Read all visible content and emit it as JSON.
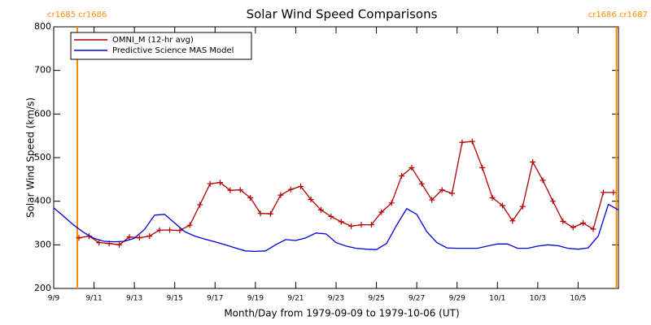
{
  "chart_data": {
    "type": "line",
    "title": "Solar Wind Speed Comparisons",
    "x_label": "Month/Day from 1979-09-09 to 1979-10-06 (UT)",
    "y_label": "Solar Wind Speed (km/s)",
    "xlim": [
      0,
      28
    ],
    "ylim": [
      200,
      800
    ],
    "yticks": [
      200,
      300,
      400,
      500,
      600,
      700,
      800
    ],
    "xticks": [
      {
        "value": 0,
        "label": "9/9"
      },
      {
        "value": 2,
        "label": "9/11"
      },
      {
        "value": 4,
        "label": "9/13"
      },
      {
        "value": 6,
        "label": "9/15"
      },
      {
        "value": 8,
        "label": "9/17"
      },
      {
        "value": 10,
        "label": "9/19"
      },
      {
        "value": 12,
        "label": "9/21"
      },
      {
        "value": 14,
        "label": "9/23"
      },
      {
        "value": 16,
        "label": "9/25"
      },
      {
        "value": 18,
        "label": "9/27"
      },
      {
        "value": 20,
        "label": "9/29"
      },
      {
        "value": 22,
        "label": "10/1"
      },
      {
        "value": 24,
        "label": "10/3"
      },
      {
        "value": 26,
        "label": "10/5"
      }
    ],
    "boundaries": [
      {
        "x": 1.17,
        "label": "cr1685 cr1686",
        "color": "#ff8c00"
      },
      {
        "x": 27.9,
        "label": "cr1686 cr1687",
        "color": "#ff8c00"
      }
    ],
    "legend": "upper left",
    "series": [
      {
        "name": "OMNI_M (12-hr avg)",
        "color": "#b00000",
        "marker": "+",
        "x": [
          1.25,
          1.75,
          2.25,
          2.75,
          3.25,
          3.75,
          4.25,
          4.75,
          5.25,
          5.75,
          6.25,
          6.75,
          7.25,
          7.75,
          8.25,
          8.75,
          9.25,
          9.75,
          10.25,
          10.75,
          11.25,
          11.75,
          12.25,
          12.75,
          13.25,
          13.75,
          14.25,
          14.75,
          15.25,
          15.75,
          16.25,
          16.75,
          17.25,
          17.75,
          18.25,
          18.75,
          19.25,
          19.75,
          20.25,
          20.75,
          21.25,
          21.75,
          22.25,
          22.75,
          23.25,
          23.75,
          24.25,
          24.75,
          25.25,
          25.75,
          26.25,
          26.75,
          27.25,
          27.75
        ],
        "values": [
          316,
          320,
          305,
          303,
          300,
          318,
          316,
          320,
          334,
          334,
          333,
          345,
          392,
          440,
          443,
          425,
          426,
          408,
          372,
          371,
          414,
          427,
          434,
          404,
          380,
          365,
          353,
          343,
          346,
          346,
          375,
          396,
          458,
          477,
          440,
          403,
          426,
          418,
          535,
          537,
          477,
          408,
          390,
          355,
          388,
          490,
          448,
          400,
          354,
          340,
          350,
          336,
          420,
          420
        ]
      },
      {
        "name": "Predictive Science MAS Model",
        "color": "#0000dd",
        "x": [
          0,
          0.5,
          1,
          1.5,
          2,
          2.5,
          3,
          3.5,
          4,
          4.5,
          5,
          5.5,
          6,
          6.5,
          7,
          7.5,
          8,
          8.5,
          9,
          9.5,
          10,
          10.5,
          11,
          11.5,
          12,
          12.5,
          13,
          13.5,
          14,
          14.5,
          15,
          15.5,
          16,
          16.5,
          17,
          17.5,
          18,
          18.5,
          19,
          19.5,
          20,
          20.5,
          21,
          21.5,
          22,
          22.5,
          23,
          23.5,
          24,
          24.5,
          25,
          25.5,
          26,
          26.5,
          27,
          27.5,
          28
        ],
        "values": [
          385,
          365,
          345,
          328,
          315,
          308,
          307,
          308,
          315,
          335,
          368,
          370,
          350,
          330,
          320,
          313,
          307,
          300,
          293,
          286,
          285,
          286,
          300,
          312,
          310,
          316,
          327,
          325,
          305,
          297,
          292,
          290,
          289,
          303,
          345,
          383,
          370,
          330,
          305,
          293,
          292,
          292,
          292,
          297,
          302,
          302,
          292,
          292,
          297,
          300,
          298,
          292,
          290,
          293,
          320,
          393,
          380
        ]
      }
    ]
  }
}
